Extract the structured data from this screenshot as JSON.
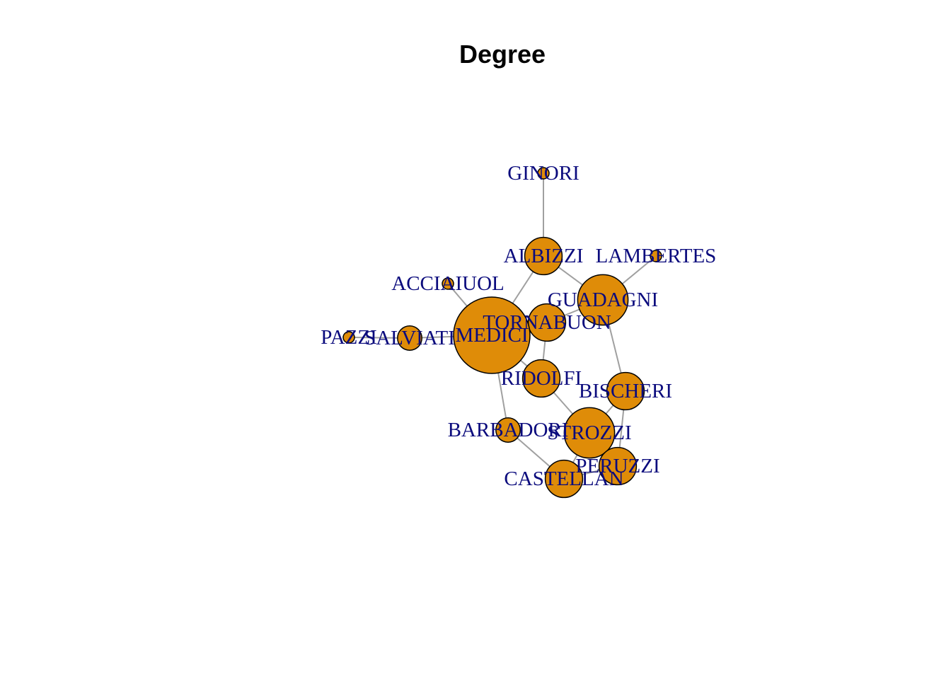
{
  "title": "Degree",
  "colors": {
    "node_fill": "#df8c08",
    "node_stroke": "#000000",
    "edge": "#a0a0a0",
    "label": "#0b0b7d"
  },
  "nodes": [
    {
      "id": "ginori",
      "label": "GINORI",
      "degree": 1
    },
    {
      "id": "albizzi",
      "label": "ALBIZZI",
      "degree": 3
    },
    {
      "id": "lambertes",
      "label": "LAMBERTES",
      "degree": 1
    },
    {
      "id": "acciaiuol",
      "label": "ACCIAIUOL",
      "degree": 1
    },
    {
      "id": "guadagni",
      "label": "GUADAGNI",
      "degree": 4
    },
    {
      "id": "tornabuon",
      "label": "TORNABUON",
      "degree": 3
    },
    {
      "id": "medici",
      "label": "MEDICI",
      "degree": 6
    },
    {
      "id": "pazzi",
      "label": "PAZZI",
      "degree": 1
    },
    {
      "id": "salviati",
      "label": "SALVIATI",
      "degree": 2
    },
    {
      "id": "ridolfi",
      "label": "RIDOLFI",
      "degree": 3
    },
    {
      "id": "bischeri",
      "label": "BISCHERI",
      "degree": 3
    },
    {
      "id": "barbadori",
      "label": "BARBADORI",
      "degree": 2
    },
    {
      "id": "strozzi",
      "label": "STROZZI",
      "degree": 4
    },
    {
      "id": "peruzzi",
      "label": "PERUZZI",
      "degree": 3
    },
    {
      "id": "castellan",
      "label": "CASTELLAN",
      "degree": 3
    }
  ],
  "edges": [
    [
      "ginori",
      "albizzi"
    ],
    [
      "albizzi",
      "guadagni"
    ],
    [
      "albizzi",
      "medici"
    ],
    [
      "lambertes",
      "guadagni"
    ],
    [
      "acciaiuol",
      "medici"
    ],
    [
      "guadagni",
      "tornabuon"
    ],
    [
      "guadagni",
      "bischeri"
    ],
    [
      "tornabuon",
      "medici"
    ],
    [
      "tornabuon",
      "ridolfi"
    ],
    [
      "medici",
      "salviati"
    ],
    [
      "medici",
      "ridolfi"
    ],
    [
      "medici",
      "barbadori"
    ],
    [
      "salviati",
      "pazzi"
    ],
    [
      "ridolfi",
      "strozzi"
    ],
    [
      "bischeri",
      "strozzi"
    ],
    [
      "bischeri",
      "peruzzi"
    ],
    [
      "barbadori",
      "castellan"
    ],
    [
      "strozzi",
      "peruzzi"
    ],
    [
      "strozzi",
      "castellan"
    ],
    [
      "peruzzi",
      "castellan"
    ]
  ]
}
